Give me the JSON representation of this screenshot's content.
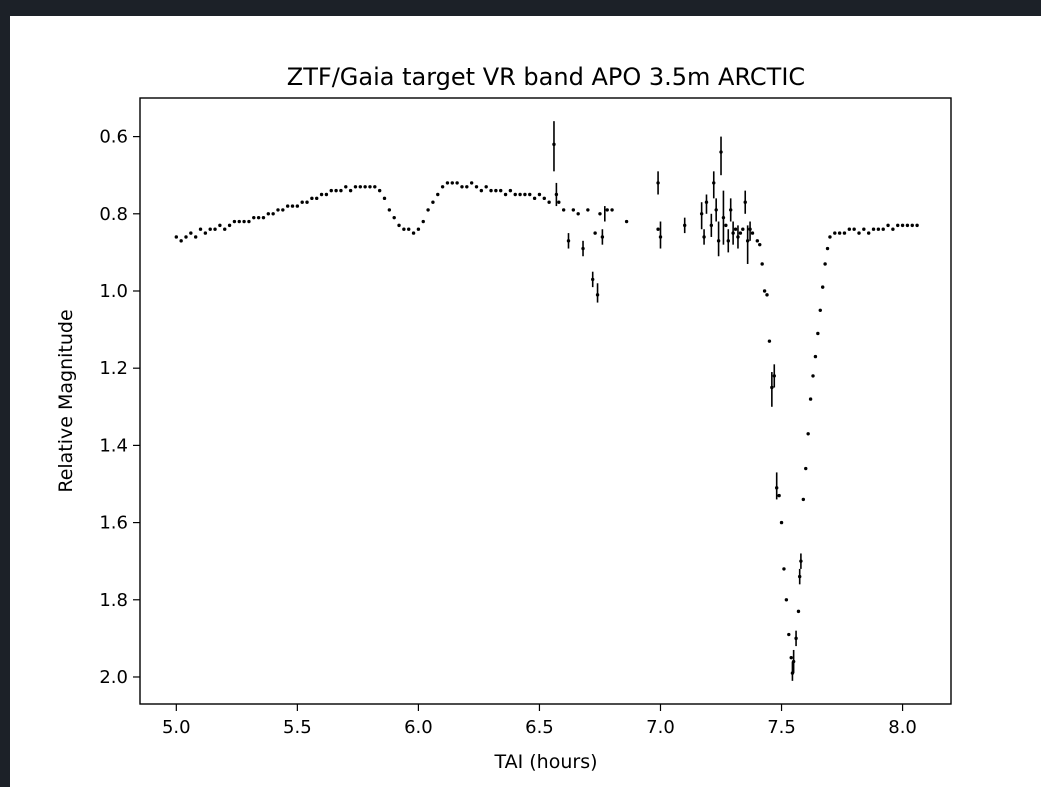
{
  "chart_data": {
    "type": "scatter",
    "title": "ZTF/Gaia target VR band APO 3.5m ARCTIC",
    "xlabel": "TAI (hours)",
    "ylabel": "Relative Magnitude",
    "xlim": [
      4.85,
      8.2
    ],
    "ylim": [
      2.07,
      0.5
    ],
    "y_inverted": true,
    "grid": false,
    "xticks": [
      5.0,
      5.5,
      6.0,
      6.5,
      7.0,
      7.5,
      8.0
    ],
    "xtick_labels": [
      "5.0",
      "5.5",
      "6.0",
      "6.5",
      "7.0",
      "7.5",
      "8.0"
    ],
    "yticks": [
      0.6,
      0.8,
      1.0,
      1.2,
      1.4,
      1.6,
      1.8,
      2.0
    ],
    "ytick_labels": [
      "0.6",
      "0.8",
      "1.0",
      "1.2",
      "1.4",
      "1.6",
      "1.8",
      "2.0"
    ],
    "marker_color": "#000000",
    "points": [
      [
        5.0,
        0.86
      ],
      [
        5.02,
        0.87
      ],
      [
        5.04,
        0.86
      ],
      [
        5.06,
        0.85
      ],
      [
        5.08,
        0.86
      ],
      [
        5.1,
        0.84
      ],
      [
        5.12,
        0.85
      ],
      [
        5.14,
        0.84
      ],
      [
        5.16,
        0.84
      ],
      [
        5.18,
        0.83
      ],
      [
        5.2,
        0.84
      ],
      [
        5.22,
        0.83
      ],
      [
        5.24,
        0.82
      ],
      [
        5.26,
        0.82
      ],
      [
        5.28,
        0.82
      ],
      [
        5.3,
        0.82
      ],
      [
        5.32,
        0.81
      ],
      [
        5.34,
        0.81
      ],
      [
        5.36,
        0.81
      ],
      [
        5.38,
        0.8
      ],
      [
        5.4,
        0.8
      ],
      [
        5.42,
        0.79
      ],
      [
        5.44,
        0.79
      ],
      [
        5.46,
        0.78
      ],
      [
        5.48,
        0.78
      ],
      [
        5.5,
        0.78
      ],
      [
        5.52,
        0.77
      ],
      [
        5.54,
        0.77
      ],
      [
        5.56,
        0.76
      ],
      [
        5.58,
        0.76
      ],
      [
        5.6,
        0.75
      ],
      [
        5.62,
        0.75
      ],
      [
        5.64,
        0.74
      ],
      [
        5.66,
        0.74
      ],
      [
        5.68,
        0.74
      ],
      [
        5.7,
        0.73
      ],
      [
        5.72,
        0.74
      ],
      [
        5.74,
        0.73
      ],
      [
        5.76,
        0.73
      ],
      [
        5.78,
        0.73
      ],
      [
        5.8,
        0.73
      ],
      [
        5.82,
        0.73
      ],
      [
        5.84,
        0.74
      ],
      [
        5.86,
        0.76
      ],
      [
        5.88,
        0.79
      ],
      [
        5.9,
        0.81
      ],
      [
        5.92,
        0.83
      ],
      [
        5.94,
        0.84
      ],
      [
        5.96,
        0.84
      ],
      [
        5.98,
        0.85
      ],
      [
        6.0,
        0.84
      ],
      [
        6.02,
        0.82
      ],
      [
        6.04,
        0.79
      ],
      [
        6.06,
        0.77
      ],
      [
        6.08,
        0.75
      ],
      [
        6.1,
        0.73
      ],
      [
        6.12,
        0.72
      ],
      [
        6.14,
        0.72
      ],
      [
        6.16,
        0.72
      ],
      [
        6.18,
        0.73
      ],
      [
        6.2,
        0.73
      ],
      [
        6.22,
        0.72
      ],
      [
        6.24,
        0.73
      ],
      [
        6.26,
        0.74
      ],
      [
        6.28,
        0.73
      ],
      [
        6.3,
        0.74
      ],
      [
        6.32,
        0.74
      ],
      [
        6.34,
        0.74
      ],
      [
        6.36,
        0.75
      ],
      [
        6.38,
        0.74
      ],
      [
        6.4,
        0.75
      ],
      [
        6.42,
        0.75
      ],
      [
        6.44,
        0.75
      ],
      [
        6.46,
        0.75
      ],
      [
        6.48,
        0.76
      ],
      [
        6.5,
        0.75
      ],
      [
        6.52,
        0.76
      ],
      [
        6.54,
        0.77
      ],
      [
        6.56,
        0.62
      ],
      [
        6.57,
        0.75
      ],
      [
        6.58,
        0.77
      ],
      [
        6.6,
        0.79
      ],
      [
        6.62,
        0.87
      ],
      [
        6.64,
        0.79
      ],
      [
        6.66,
        0.8
      ],
      [
        6.68,
        0.89
      ],
      [
        6.7,
        0.79
      ],
      [
        6.72,
        0.97
      ],
      [
        6.73,
        0.85
      ],
      [
        6.74,
        1.01
      ],
      [
        6.75,
        0.8
      ],
      [
        6.76,
        0.86
      ],
      [
        6.78,
        0.79
      ],
      [
        6.8,
        0.79
      ],
      [
        6.86,
        0.82
      ],
      [
        6.99,
        0.72
      ],
      [
        6.99,
        0.84
      ],
      [
        7.0,
        0.86
      ],
      [
        7.1,
        0.83
      ],
      [
        7.17,
        0.8
      ],
      [
        7.18,
        0.86
      ],
      [
        7.19,
        0.77
      ],
      [
        7.21,
        0.83
      ],
      [
        7.22,
        0.72
      ],
      [
        7.23,
        0.79
      ],
      [
        7.24,
        0.87
      ],
      [
        7.25,
        0.64
      ],
      [
        7.26,
        0.81
      ],
      [
        7.27,
        0.83
      ],
      [
        7.28,
        0.87
      ],
      [
        7.29,
        0.79
      ],
      [
        7.3,
        0.85
      ],
      [
        7.31,
        0.84
      ],
      [
        7.32,
        0.86
      ],
      [
        7.33,
        0.85
      ],
      [
        7.34,
        0.84
      ],
      [
        7.35,
        0.77
      ],
      [
        7.36,
        0.87
      ],
      [
        7.37,
        0.84
      ],
      [
        7.38,
        0.85
      ],
      [
        7.4,
        0.87
      ],
      [
        7.41,
        0.88
      ],
      [
        7.42,
        0.93
      ],
      [
        7.43,
        1.0
      ],
      [
        7.44,
        1.01
      ],
      [
        7.45,
        1.13
      ],
      [
        7.46,
        1.25
      ],
      [
        7.47,
        1.22
      ],
      [
        7.48,
        1.51
      ],
      [
        7.49,
        1.53
      ],
      [
        7.5,
        1.6
      ],
      [
        7.51,
        1.72
      ],
      [
        7.52,
        1.8
      ],
      [
        7.53,
        1.89
      ],
      [
        7.54,
        1.95
      ],
      [
        7.545,
        1.99
      ],
      [
        7.55,
        1.96
      ],
      [
        7.56,
        1.9
      ],
      [
        7.57,
        1.83
      ],
      [
        7.575,
        1.74
      ],
      [
        7.58,
        1.7
      ],
      [
        7.59,
        1.54
      ],
      [
        7.6,
        1.46
      ],
      [
        7.61,
        1.37
      ],
      [
        7.62,
        1.28
      ],
      [
        7.63,
        1.22
      ],
      [
        7.64,
        1.17
      ],
      [
        7.65,
        1.11
      ],
      [
        7.66,
        1.05
      ],
      [
        7.67,
        0.99
      ],
      [
        7.68,
        0.93
      ],
      [
        7.69,
        0.89
      ],
      [
        7.7,
        0.86
      ],
      [
        7.72,
        0.85
      ],
      [
        7.74,
        0.85
      ],
      [
        7.76,
        0.85
      ],
      [
        7.78,
        0.84
      ],
      [
        7.8,
        0.84
      ],
      [
        7.82,
        0.85
      ],
      [
        7.84,
        0.84
      ],
      [
        7.86,
        0.85
      ],
      [
        7.88,
        0.84
      ],
      [
        7.9,
        0.84
      ],
      [
        7.92,
        0.84
      ],
      [
        7.94,
        0.83
      ],
      [
        7.96,
        0.84
      ],
      [
        7.98,
        0.83
      ],
      [
        8.0,
        0.83
      ],
      [
        8.02,
        0.83
      ],
      [
        8.04,
        0.83
      ],
      [
        8.06,
        0.83
      ]
    ],
    "errorbars": [
      [
        6.56,
        0.56,
        0.69
      ],
      [
        6.57,
        0.72,
        0.78
      ],
      [
        6.62,
        0.85,
        0.89
      ],
      [
        6.68,
        0.87,
        0.91
      ],
      [
        6.72,
        0.95,
        0.99
      ],
      [
        6.74,
        0.98,
        1.03
      ],
      [
        6.76,
        0.84,
        0.88
      ],
      [
        6.77,
        0.78,
        0.82
      ],
      [
        6.99,
        0.69,
        0.75
      ],
      [
        7.0,
        0.82,
        0.89
      ],
      [
        7.1,
        0.81,
        0.85
      ],
      [
        7.17,
        0.77,
        0.84
      ],
      [
        7.18,
        0.84,
        0.88
      ],
      [
        7.19,
        0.75,
        0.8
      ],
      [
        7.21,
        0.8,
        0.86
      ],
      [
        7.22,
        0.69,
        0.76
      ],
      [
        7.23,
        0.76,
        0.82
      ],
      [
        7.24,
        0.82,
        0.91
      ],
      [
        7.25,
        0.6,
        0.7
      ],
      [
        7.26,
        0.74,
        0.88
      ],
      [
        7.28,
        0.84,
        0.9
      ],
      [
        7.29,
        0.76,
        0.82
      ],
      [
        7.3,
        0.82,
        0.88
      ],
      [
        7.32,
        0.83,
        0.89
      ],
      [
        7.35,
        0.74,
        0.8
      ],
      [
        7.36,
        0.83,
        0.93
      ],
      [
        7.37,
        0.82,
        0.87
      ],
      [
        7.46,
        1.21,
        1.3
      ],
      [
        7.47,
        1.19,
        1.25
      ],
      [
        7.48,
        1.47,
        1.54
      ],
      [
        7.545,
        1.96,
        2.01
      ],
      [
        7.55,
        1.93,
        1.99
      ],
      [
        7.56,
        1.88,
        1.92
      ],
      [
        7.575,
        1.72,
        1.76
      ],
      [
        7.58,
        1.68,
        1.72
      ]
    ]
  }
}
